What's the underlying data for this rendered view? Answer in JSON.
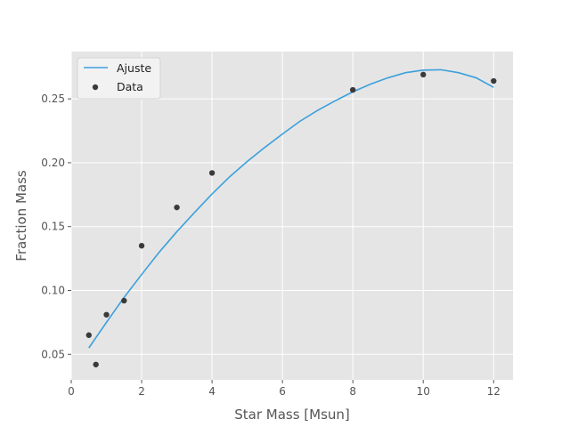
{
  "chart_data": {
    "type": "scatter",
    "title": "",
    "xlabel": "Star Mass [Msun]",
    "ylabel": "Fraction Mass",
    "xlim": [
      0,
      12.55
    ],
    "ylim": [
      0.03,
      0.287
    ],
    "xticks": [
      0,
      2,
      4,
      6,
      8,
      10,
      12
    ],
    "xtick_labels": [
      "0",
      "2",
      "4",
      "6",
      "8",
      "10",
      "12"
    ],
    "yticks": [
      0.05,
      0.1,
      0.15,
      0.2,
      0.25
    ],
    "ytick_labels": [
      "0.05",
      "0.10",
      "0.15",
      "0.20",
      "0.25"
    ],
    "grid": true,
    "legend_position": "top-left",
    "series": [
      {
        "name": "Ajuste",
        "kind": "line",
        "color": "#3ca0dc",
        "x": [
          0.5,
          1.0,
          1.5,
          2.0,
          2.5,
          3.0,
          3.5,
          4.0,
          4.5,
          5.0,
          5.5,
          6.0,
          6.5,
          7.0,
          7.5,
          8.0,
          8.5,
          9.0,
          9.5,
          10.0,
          10.5,
          11.0,
          11.5,
          12.0
        ],
        "y": [
          0.055,
          0.075,
          0.0945,
          0.1125,
          0.13,
          0.146,
          0.161,
          0.1755,
          0.189,
          0.201,
          0.212,
          0.2225,
          0.2325,
          0.241,
          0.2485,
          0.2555,
          0.2615,
          0.2665,
          0.2705,
          0.2725,
          0.2728,
          0.2705,
          0.2665,
          0.259
        ]
      },
      {
        "name": "Data",
        "kind": "scatter",
        "color": "#3a3a3a",
        "x": [
          0.5,
          0.7,
          1.0,
          1.5,
          2.0,
          3.0,
          4.0,
          8.0,
          10.0,
          12.0
        ],
        "y": [
          0.065,
          0.042,
          0.081,
          0.092,
          0.135,
          0.165,
          0.192,
          0.257,
          0.269,
          0.264
        ]
      }
    ]
  },
  "colors": {
    "plot_background": "#e5e5e5",
    "grid": "#ffffff",
    "legend_background": "#f2f2f2"
  }
}
